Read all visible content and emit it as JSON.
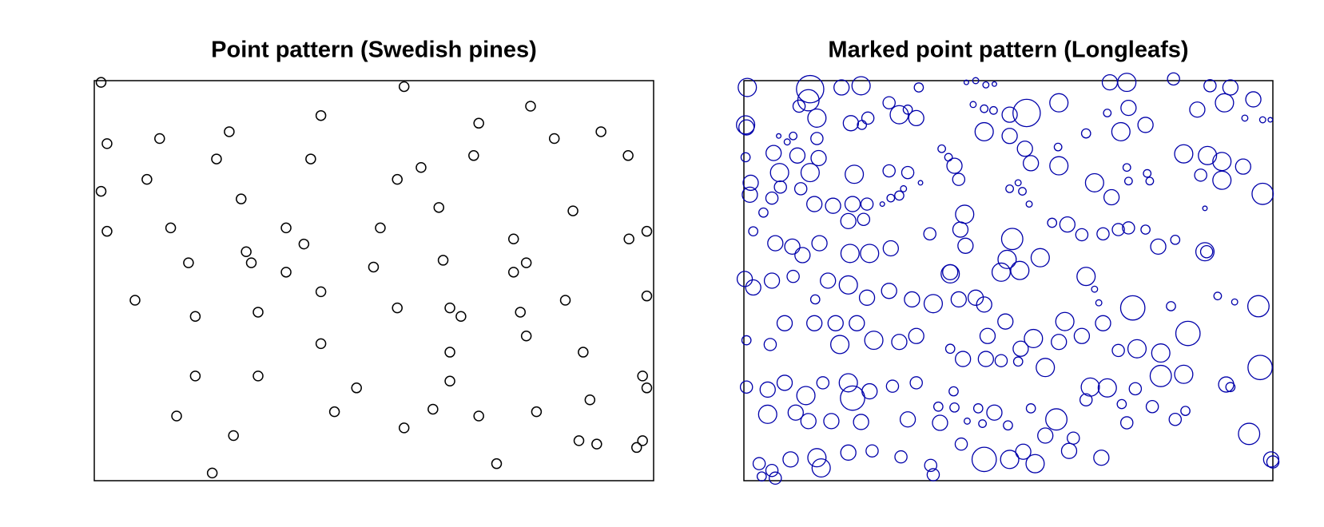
{
  "chart_data": [
    {
      "type": "scatter",
      "title": "Point pattern (Swedish pines)",
      "color": "#000000",
      "xlim": [
        0,
        659
      ],
      "ylim": [
        0,
        470
      ],
      "x": [
        8,
        365,
        267,
        514,
        453,
        15,
        77,
        159,
        542,
        597,
        144,
        255,
        447,
        629,
        62,
        357,
        385,
        8,
        173,
        406,
        564,
        15,
        90,
        226,
        337,
        247,
        494,
        630,
        651,
        179,
        111,
        185,
        226,
        329,
        411,
        509,
        494,
        267,
        48,
        119,
        193,
        357,
        419,
        432,
        502,
        555,
        651,
        267,
        509,
        419,
        576,
        119,
        193,
        309,
        419,
        646,
        651,
        584,
        97,
        283,
        399,
        453,
        521,
        365,
        164,
        571,
        592,
        639,
        646,
        474,
        139
      ],
      "values": [
        468,
        463,
        429,
        440,
        420,
        396,
        402,
        410,
        402,
        410,
        378,
        378,
        382,
        382,
        354,
        354,
        368,
        340,
        331,
        321,
        317,
        293,
        297,
        297,
        297,
        278,
        284,
        284,
        293,
        269,
        256,
        256,
        245,
        251,
        259,
        256,
        245,
        222,
        212,
        193,
        198,
        203,
        203,
        193,
        198,
        212,
        217,
        161,
        170,
        151,
        151,
        123,
        123,
        109,
        117,
        123,
        109,
        95,
        76,
        81,
        84,
        76,
        81,
        62,
        53,
        47,
        43,
        39,
        47,
        20,
        9
      ]
    },
    {
      "type": "bubble",
      "title": "Marked point pattern (Longleafs)",
      "color": "#0000aa",
      "xlim": [
        0,
        623
      ],
      "ylim": [
        0,
        470
      ],
      "x": [
        4,
        78,
        76,
        115,
        138,
        206,
        262,
        273,
        285,
        295,
        431,
        451,
        506,
        549,
        573,
        600,
        534,
        566,
        590,
        611,
        620,
        371,
        333,
        270,
        283,
        294,
        313,
        453,
        473,
        444,
        403,
        428,
        171,
        193,
        203,
        183,
        146,
        126,
        139,
        86,
        65,
        2,
        3,
        41,
        51,
        58,
        86,
        35,
        2,
        42,
        63,
        88,
        78,
        130,
        171,
        193,
        233,
        241,
        248,
        253,
        283,
        313,
        331,
        338,
        370,
        371,
        413,
        433,
        518,
        546,
        563,
        588,
        611,
        563,
        538,
        478,
        453,
        451,
        475,
        208,
        173,
        183,
        163,
        188,
        313,
        323,
        328,
        336,
        543,
        8,
        7,
        33,
        43,
        67,
        83,
        105,
        128,
        145,
        123,
        141,
        23,
        11,
        37,
        57,
        69,
        89,
        125,
        148,
        173,
        219,
        260,
        255,
        261,
        316,
        363,
        381,
        398,
        423,
        441,
        453,
        473,
        488,
        508,
        543,
        545,
        310,
        303,
        349,
        325,
        403,
        243,
        243,
        1,
        11,
        33,
        58,
        84,
        99,
        123,
        145,
        171,
        198,
        223,
        253,
        273,
        283,
        458,
        503,
        558,
        578,
        606,
        413,
        418,
        378,
        308,
        287,
        326,
        341,
        371,
        398,
        423,
        441,
        463,
        491,
        523,
        608,
        3,
        31,
        48,
        83,
        108,
        133,
        113,
        153,
        183,
        203,
        243,
        258,
        285,
        303,
        323,
        355,
        408,
        428,
        461,
        491,
        518,
        568,
        573,
        3,
        28,
        48,
        73,
        93,
        123,
        128,
        148,
        175,
        203,
        229,
        247,
        248,
        276,
        295,
        338,
        368,
        403,
        445,
        451,
        481,
        508,
        520,
        595,
        28,
        61,
        76,
        103,
        138,
        193,
        231,
        263,
        281,
        311,
        355,
        388,
        421,
        18,
        33,
        21,
        37,
        55,
        86,
        91,
        123,
        151,
        185,
        220,
        223,
        256,
        283,
        313,
        329,
        343,
        383,
        621,
        623
      ],
      "values": [
        462,
        460,
        447,
        462,
        464,
        462,
        468,
        470,
        465,
        466,
        468,
        468,
        472,
        464,
        462,
        448,
        436,
        444,
        426,
        424,
        424,
        444,
        432,
        442,
        437,
        435,
        430,
        438,
        418,
        410,
        408,
        432,
        444,
        436,
        426,
        430,
        426,
        420,
        418,
        426,
        440,
        418,
        415,
        405,
        398,
        405,
        402,
        385,
        380,
        362,
        382,
        379,
        362,
        360,
        364,
        362,
        390,
        380,
        370,
        354,
        410,
        405,
        390,
        373,
        392,
        370,
        350,
        333,
        384,
        382,
        375,
        369,
        337,
        353,
        359,
        352,
        352,
        368,
        361,
        350,
        332,
        335,
        325,
        343,
        343,
        350,
        340,
        325,
        320,
        350,
        336,
        332,
        345,
        343,
        325,
        323,
        325,
        325,
        305,
        307,
        315,
        293,
        279,
        275,
        265,
        279,
        267,
        267,
        273,
        290,
        313,
        295,
        276,
        284,
        303,
        301,
        289,
        290,
        295,
        297,
        295,
        275,
        283,
        269,
        269,
        260,
        245,
        262,
        247,
        240,
        245,
        243,
        237,
        227,
        235,
        240,
        213,
        235,
        230,
        215,
        223,
        213,
        208,
        213,
        215,
        207,
        203,
        205,
        217,
        210,
        205,
        225,
        209,
        187,
        187,
        170,
        155,
        167,
        163,
        170,
        185,
        153,
        155,
        150,
        173,
        133,
        165,
        160,
        185,
        185,
        185,
        185,
        160,
        165,
        163,
        170,
        155,
        143,
        143,
        141,
        140,
        133,
        110,
        109,
        108,
        123,
        125,
        113,
        110,
        110,
        107,
        115,
        100,
        115,
        115,
        97,
        105,
        111,
        115,
        87,
        105,
        86,
        85,
        80,
        85,
        72,
        95,
        90,
        68,
        87,
        72,
        82,
        55,
        78,
        80,
        70,
        70,
        69,
        72,
        68,
        70,
        67,
        65,
        53,
        50,
        27,
        20,
        12,
        5,
        3,
        25,
        27,
        15,
        33,
        35,
        28,
        18,
        7,
        43,
        25,
        25,
        34,
        20,
        35,
        25,
        22
      ],
      "sizes": [
        12,
        18,
        14,
        10,
        12,
        6,
        3,
        4,
        4,
        3,
        10,
        12,
        8,
        8,
        10,
        10,
        10,
        12,
        4,
        4,
        3,
        12,
        18,
        4,
        5,
        5,
        10,
        10,
        10,
        12,
        6,
        5,
        8,
        6,
        10,
        12,
        8,
        10,
        6,
        12,
        8,
        12,
        10,
        3,
        4,
        5,
        8,
        10,
        6,
        12,
        10,
        10,
        12,
        12,
        8,
        8,
        5,
        5,
        10,
        8,
        12,
        10,
        10,
        10,
        5,
        12,
        12,
        10,
        12,
        12,
        12,
        10,
        14,
        12,
        8,
        5,
        5,
        5,
        5,
        3,
        5,
        6,
        3,
        4,
        5,
        4,
        5,
        4,
        3,
        10,
        10,
        8,
        8,
        8,
        10,
        10,
        10,
        8,
        10,
        8,
        6,
        6,
        10,
        10,
        10,
        10,
        12,
        12,
        10,
        8,
        12,
        10,
        10,
        14,
        6,
        10,
        8,
        8,
        8,
        8,
        6,
        10,
        6,
        12,
        8,
        12,
        12,
        12,
        12,
        12,
        10,
        12,
        10,
        10,
        10,
        8,
        6,
        10,
        12,
        10,
        10,
        10,
        12,
        10,
        10,
        10,
        16,
        6,
        5,
        4,
        14,
        4,
        4,
        12,
        10,
        10,
        10,
        12,
        10,
        10,
        10,
        8,
        12,
        12,
        16,
        16,
        6,
        8,
        10,
        10,
        10,
        10,
        12,
        12,
        10,
        10,
        6,
        10,
        10,
        8,
        6,
        12,
        12,
        12,
        8,
        14,
        12,
        10,
        6,
        8,
        10,
        10,
        12,
        8,
        12,
        16,
        10,
        8,
        8,
        6,
        6,
        6,
        6,
        10,
        6,
        14,
        8,
        6,
        8,
        8,
        8,
        6,
        14,
        12,
        10,
        10,
        10,
        10,
        10,
        10,
        4,
        5,
        6,
        10,
        8,
        10,
        8,
        8,
        6,
        8,
        10,
        12,
        12,
        10,
        8,
        8,
        8,
        8,
        8,
        16,
        12,
        10,
        12,
        10,
        10,
        8
      ]
    }
  ]
}
